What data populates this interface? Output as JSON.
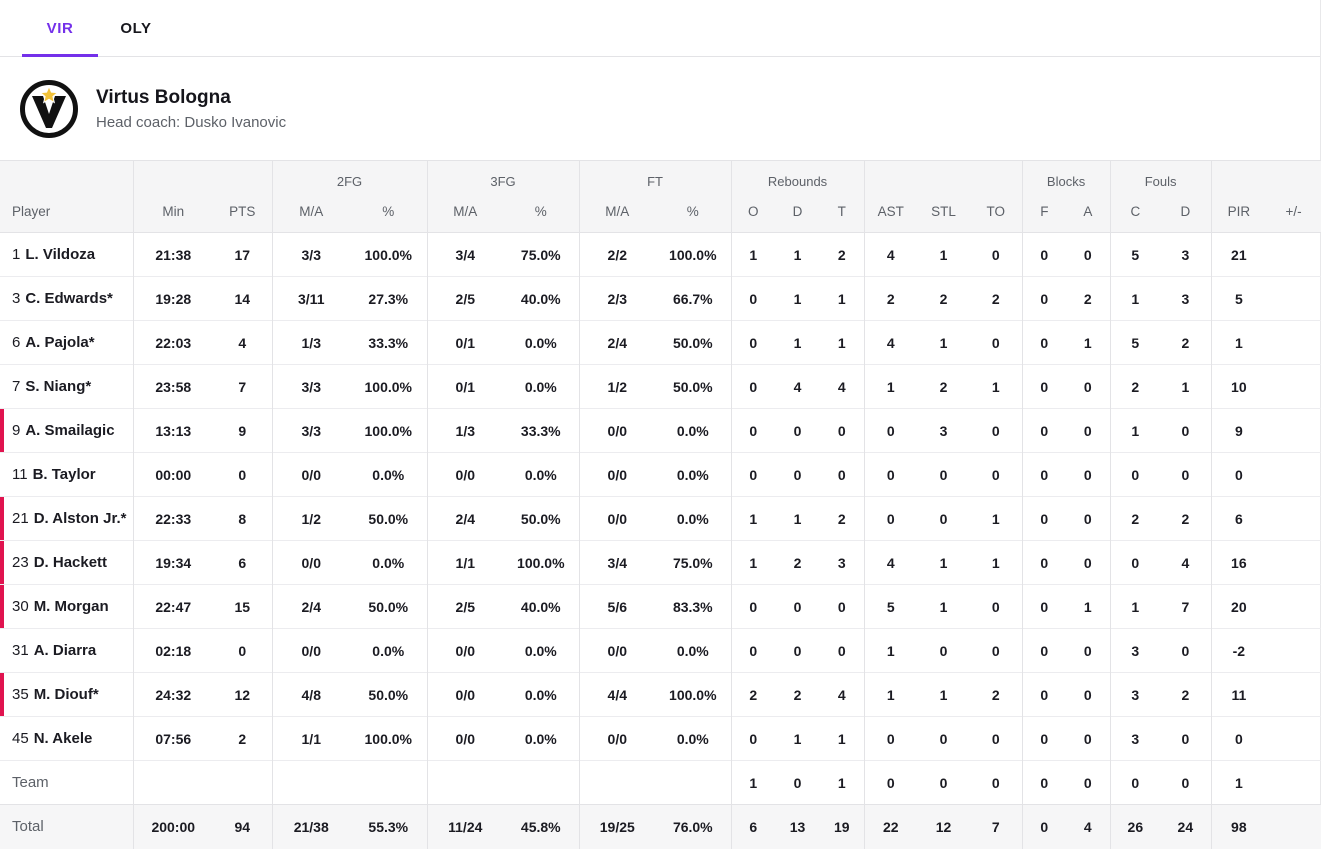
{
  "tabs": [
    {
      "label": "VIR",
      "active": true
    },
    {
      "label": "OLY",
      "active": false
    }
  ],
  "team": {
    "name": "Virtus Bologna",
    "coach": "Head coach: Dusko Ivanovic"
  },
  "colors": {
    "accent": "#7430ea",
    "on_court_indicator": "#e0134f",
    "table_header_bg": "#f5f5f6",
    "total_row_bg": "#f6f6f7",
    "border": "#e3e3e6",
    "text_primary": "#1b1b22",
    "text_secondary": "#5d6168"
  },
  "table": {
    "header": {
      "groups": [
        {
          "label": "",
          "span": 1
        },
        {
          "label": "",
          "span": 2
        },
        {
          "label": "2FG",
          "span": 2
        },
        {
          "label": "3FG",
          "span": 2
        },
        {
          "label": "FT",
          "span": 2
        },
        {
          "label": "Rebounds",
          "span": 3
        },
        {
          "label": "",
          "span": 3
        },
        {
          "label": "Blocks",
          "span": 2
        },
        {
          "label": "Fouls",
          "span": 2
        },
        {
          "label": "",
          "span": 2
        }
      ],
      "columns": [
        "Player",
        "Min",
        "PTS",
        "M/A",
        "%",
        "M/A",
        "%",
        "M/A",
        "%",
        "O",
        "D",
        "T",
        "AST",
        "STL",
        "TO",
        "F",
        "A",
        "C",
        "D",
        "PIR",
        "+/-"
      ]
    },
    "rows": [
      {
        "number": "1",
        "name": "L. Vildoza",
        "on_court": false,
        "stats": [
          "21:38",
          "17",
          "3/3",
          "100.0%",
          "3/4",
          "75.0%",
          "2/2",
          "100.0%",
          "1",
          "1",
          "2",
          "4",
          "1",
          "0",
          "0",
          "0",
          "5",
          "3",
          "21",
          ""
        ]
      },
      {
        "number": "3",
        "name": "C. Edwards*",
        "on_court": false,
        "stats": [
          "19:28",
          "14",
          "3/11",
          "27.3%",
          "2/5",
          "40.0%",
          "2/3",
          "66.7%",
          "0",
          "1",
          "1",
          "2",
          "2",
          "2",
          "0",
          "2",
          "1",
          "3",
          "5",
          ""
        ]
      },
      {
        "number": "6",
        "name": "A. Pajola*",
        "on_court": false,
        "stats": [
          "22:03",
          "4",
          "1/3",
          "33.3%",
          "0/1",
          "0.0%",
          "2/4",
          "50.0%",
          "0",
          "1",
          "1",
          "4",
          "1",
          "0",
          "0",
          "1",
          "5",
          "2",
          "1",
          ""
        ]
      },
      {
        "number": "7",
        "name": "S. Niang*",
        "on_court": false,
        "stats": [
          "23:58",
          "7",
          "3/3",
          "100.0%",
          "0/1",
          "0.0%",
          "1/2",
          "50.0%",
          "0",
          "4",
          "4",
          "1",
          "2",
          "1",
          "0",
          "0",
          "2",
          "1",
          "10",
          ""
        ]
      },
      {
        "number": "9",
        "name": "A. Smailagic",
        "on_court": true,
        "stats": [
          "13:13",
          "9",
          "3/3",
          "100.0%",
          "1/3",
          "33.3%",
          "0/0",
          "0.0%",
          "0",
          "0",
          "0",
          "0",
          "3",
          "0",
          "0",
          "0",
          "1",
          "0",
          "9",
          ""
        ]
      },
      {
        "number": "11",
        "name": "B. Taylor",
        "on_court": false,
        "stats": [
          "00:00",
          "0",
          "0/0",
          "0.0%",
          "0/0",
          "0.0%",
          "0/0",
          "0.0%",
          "0",
          "0",
          "0",
          "0",
          "0",
          "0",
          "0",
          "0",
          "0",
          "0",
          "0",
          ""
        ]
      },
      {
        "number": "21",
        "name": "D. Alston Jr.*",
        "on_court": true,
        "stats": [
          "22:33",
          "8",
          "1/2",
          "50.0%",
          "2/4",
          "50.0%",
          "0/0",
          "0.0%",
          "1",
          "1",
          "2",
          "0",
          "0",
          "1",
          "0",
          "0",
          "2",
          "2",
          "6",
          ""
        ]
      },
      {
        "number": "23",
        "name": "D. Hackett",
        "on_court": true,
        "stats": [
          "19:34",
          "6",
          "0/0",
          "0.0%",
          "1/1",
          "100.0%",
          "3/4",
          "75.0%",
          "1",
          "2",
          "3",
          "4",
          "1",
          "1",
          "0",
          "0",
          "0",
          "4",
          "16",
          ""
        ]
      },
      {
        "number": "30",
        "name": "M. Morgan",
        "on_court": true,
        "stats": [
          "22:47",
          "15",
          "2/4",
          "50.0%",
          "2/5",
          "40.0%",
          "5/6",
          "83.3%",
          "0",
          "0",
          "0",
          "5",
          "1",
          "0",
          "0",
          "1",
          "1",
          "7",
          "20",
          ""
        ]
      },
      {
        "number": "31",
        "name": "A. Diarra",
        "on_court": false,
        "stats": [
          "02:18",
          "0",
          "0/0",
          "0.0%",
          "0/0",
          "0.0%",
          "0/0",
          "0.0%",
          "0",
          "0",
          "0",
          "1",
          "0",
          "0",
          "0",
          "0",
          "3",
          "0",
          "-2",
          ""
        ]
      },
      {
        "number": "35",
        "name": "M. Diouf*",
        "on_court": true,
        "stats": [
          "24:32",
          "12",
          "4/8",
          "50.0%",
          "0/0",
          "0.0%",
          "4/4",
          "100.0%",
          "2",
          "2",
          "4",
          "1",
          "1",
          "2",
          "0",
          "0",
          "3",
          "2",
          "11",
          ""
        ]
      },
      {
        "number": "45",
        "name": "N. Akele",
        "on_court": false,
        "stats": [
          "07:56",
          "2",
          "1/1",
          "100.0%",
          "0/0",
          "0.0%",
          "0/0",
          "0.0%",
          "0",
          "1",
          "1",
          "0",
          "0",
          "0",
          "0",
          "0",
          "3",
          "0",
          "0",
          ""
        ]
      }
    ],
    "team_row": {
      "label": "Team",
      "stats": [
        "",
        "",
        "",
        "",
        "",
        "",
        "",
        "",
        "1",
        "0",
        "1",
        "0",
        "0",
        "0",
        "0",
        "0",
        "0",
        "0",
        "1",
        ""
      ]
    },
    "total_row": {
      "label": "Total",
      "stats": [
        "200:00",
        "94",
        "21/38",
        "55.3%",
        "11/24",
        "45.8%",
        "19/25",
        "76.0%",
        "6",
        "13",
        "19",
        "22",
        "12",
        "7",
        "0",
        "4",
        "26",
        "24",
        "98",
        ""
      ]
    }
  }
}
